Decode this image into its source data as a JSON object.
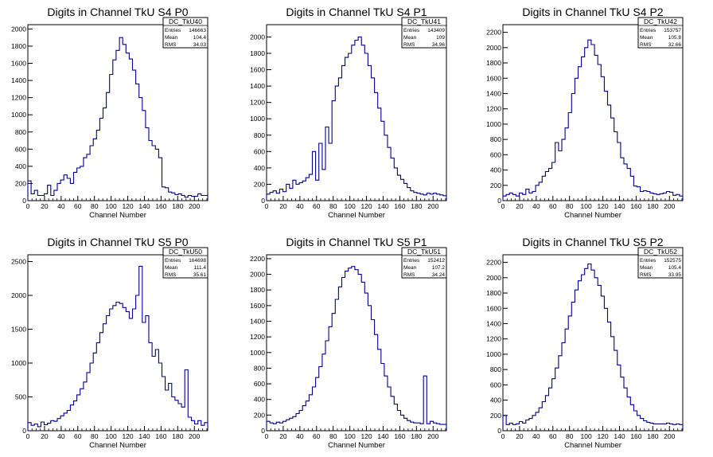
{
  "chart_data": [
    {
      "type": "histogram",
      "title": "Digits in Channel TkU S4 P0",
      "xlabel": "Channel Number",
      "xlim": [
        0,
        216
      ],
      "ylim": [
        0,
        2050
      ],
      "xticks": [
        0,
        20,
        40,
        60,
        80,
        100,
        120,
        140,
        160,
        180,
        200
      ],
      "yticks": [
        200,
        400,
        600,
        800,
        1000,
        1200,
        1400,
        1600,
        1800,
        2000
      ],
      "stats": {
        "name": "DC_TkU40",
        "entries": "146663",
        "mean": "104.4",
        "rms": "34.03"
      },
      "series": [
        {
          "x": [
            0,
            4,
            8,
            12,
            16,
            20,
            24,
            28,
            32,
            36,
            40,
            44,
            48,
            52,
            56,
            60,
            64,
            68,
            72,
            76,
            80,
            84,
            88,
            92,
            96,
            100,
            104,
            108,
            112,
            116,
            120,
            124,
            128,
            132,
            136,
            140,
            144,
            148,
            152,
            156,
            160,
            164,
            168,
            172,
            176,
            180,
            184,
            188,
            192,
            196,
            200,
            204,
            208,
            212,
            216
          ],
          "values": [
            230,
            80,
            120,
            60,
            60,
            80,
            180,
            60,
            120,
            200,
            240,
            300,
            260,
            200,
            330,
            380,
            400,
            500,
            540,
            640,
            720,
            820,
            960,
            1080,
            1260,
            1470,
            1640,
            1750,
            1900,
            1820,
            1720,
            1650,
            1520,
            1360,
            1200,
            1050,
            850,
            700,
            640,
            600,
            500,
            160,
            150,
            100,
            90,
            70,
            80,
            60,
            40,
            60,
            50,
            50,
            80,
            60,
            60
          ]
        }
      ]
    },
    {
      "type": "histogram",
      "title": "Digits in Channel TkU S4 P1",
      "xlabel": "Channel Number",
      "xlim": [
        0,
        216
      ],
      "ylim": [
        0,
        2150
      ],
      "xticks": [
        0,
        20,
        40,
        60,
        80,
        100,
        120,
        140,
        160,
        180,
        200
      ],
      "yticks": [
        200,
        400,
        600,
        800,
        1000,
        1200,
        1400,
        1600,
        1800,
        2000
      ],
      "stats": {
        "name": "DC_TkU41",
        "entries": "143409",
        "mean": "109",
        "rms": "34.96"
      },
      "series": [
        {
          "x": [
            0,
            4,
            8,
            12,
            16,
            20,
            24,
            28,
            32,
            36,
            40,
            44,
            48,
            52,
            56,
            60,
            64,
            68,
            72,
            76,
            80,
            84,
            88,
            92,
            96,
            100,
            104,
            108,
            112,
            116,
            120,
            124,
            128,
            132,
            136,
            140,
            144,
            148,
            152,
            156,
            160,
            164,
            168,
            172,
            176,
            180,
            184,
            188,
            192,
            196,
            200,
            204,
            208,
            212,
            216
          ],
          "values": [
            80,
            100,
            120,
            90,
            140,
            110,
            200,
            150,
            250,
            200,
            220,
            240,
            280,
            320,
            600,
            250,
            700,
            380,
            900,
            700,
            1220,
            1400,
            1500,
            1650,
            1750,
            1800,
            1900,
            1960,
            2000,
            1900,
            1800,
            1650,
            1500,
            1320,
            1130,
            970,
            800,
            650,
            520,
            400,
            310,
            260,
            210,
            160,
            120,
            100,
            90,
            80,
            70,
            90,
            80,
            90,
            80,
            70,
            60
          ]
        }
      ]
    },
    {
      "type": "histogram",
      "title": "Digits in Channel TkU S4 P2",
      "xlabel": "Channel Number",
      "xlim": [
        0,
        216
      ],
      "ylim": [
        0,
        2300
      ],
      "xticks": [
        0,
        20,
        40,
        60,
        80,
        100,
        120,
        140,
        160,
        180,
        200
      ],
      "yticks": [
        200,
        400,
        600,
        800,
        1000,
        1200,
        1400,
        1600,
        1800,
        2000,
        2200
      ],
      "stats": {
        "name": "DC_TkU42",
        "entries": "153757",
        "mean": "105.8",
        "rms": "32.66"
      },
      "series": [
        {
          "x": [
            0,
            4,
            8,
            12,
            16,
            20,
            24,
            28,
            32,
            36,
            40,
            44,
            48,
            52,
            56,
            60,
            64,
            68,
            72,
            76,
            80,
            84,
            88,
            92,
            96,
            100,
            104,
            108,
            112,
            116,
            120,
            124,
            128,
            132,
            136,
            140,
            144,
            148,
            152,
            156,
            160,
            164,
            168,
            172,
            176,
            180,
            184,
            188,
            192,
            196,
            200,
            204,
            208,
            212,
            216
          ],
          "values": [
            60,
            80,
            100,
            80,
            60,
            100,
            80,
            150,
            100,
            120,
            200,
            240,
            320,
            380,
            420,
            500,
            760,
            650,
            800,
            950,
            1150,
            1400,
            1600,
            1750,
            1880,
            2000,
            2100,
            2040,
            1900,
            1780,
            1620,
            1430,
            1250,
            1080,
            900,
            760,
            560,
            480,
            420,
            320,
            190,
            180,
            120,
            130,
            120,
            100,
            90,
            80,
            90,
            100,
            120,
            110,
            70,
            80,
            60
          ]
        }
      ]
    },
    {
      "type": "histogram",
      "title": "Digits in Channel TkU S5 P0",
      "xlabel": "Channel Number",
      "xlim": [
        0,
        216
      ],
      "ylim": [
        0,
        2600
      ],
      "xticks": [
        0,
        20,
        40,
        60,
        80,
        100,
        120,
        140,
        160,
        180,
        200
      ],
      "yticks": [
        500,
        1000,
        1500,
        2000,
        2500
      ],
      "stats": {
        "name": "DC_TkU50",
        "entries": "164698",
        "mean": "111.4",
        "rms": "35.61"
      },
      "series": [
        {
          "x": [
            0,
            4,
            8,
            12,
            16,
            20,
            24,
            28,
            32,
            36,
            40,
            44,
            48,
            52,
            56,
            60,
            64,
            68,
            72,
            76,
            80,
            84,
            88,
            92,
            96,
            100,
            104,
            108,
            112,
            116,
            120,
            124,
            128,
            132,
            136,
            140,
            144,
            148,
            152,
            156,
            160,
            164,
            168,
            172,
            176,
            180,
            184,
            188,
            192,
            196,
            200,
            204,
            208,
            212,
            216
          ],
          "values": [
            120,
            80,
            100,
            60,
            130,
            90,
            110,
            150,
            140,
            180,
            220,
            260,
            300,
            380,
            440,
            530,
            620,
            720,
            860,
            1000,
            1150,
            1300,
            1450,
            1580,
            1700,
            1800,
            1850,
            1900,
            1880,
            1820,
            1760,
            1660,
            1800,
            2000,
            2430,
            1600,
            1700,
            1300,
            1100,
            1200,
            1000,
            800,
            600,
            700,
            500,
            450,
            400,
            350,
            900,
            200,
            150,
            100,
            150,
            80,
            120
          ]
        }
      ]
    },
    {
      "type": "histogram",
      "title": "Digits in Channel TkU S5 P1",
      "xlabel": "Channel Number",
      "xlim": [
        0,
        216
      ],
      "ylim": [
        0,
        2250
      ],
      "xticks": [
        0,
        20,
        40,
        60,
        80,
        100,
        120,
        140,
        160,
        180,
        200
      ],
      "yticks": [
        200,
        400,
        600,
        800,
        1000,
        1200,
        1400,
        1600,
        1800,
        2000,
        2200
      ],
      "stats": {
        "name": "DC_TkU51",
        "entries": "152412",
        "mean": "107.2",
        "rms": "34.24"
      },
      "series": [
        {
          "x": [
            0,
            4,
            8,
            12,
            16,
            20,
            24,
            28,
            32,
            36,
            40,
            44,
            48,
            52,
            56,
            60,
            64,
            68,
            72,
            76,
            80,
            84,
            88,
            92,
            96,
            100,
            104,
            108,
            112,
            116,
            120,
            124,
            128,
            132,
            136,
            140,
            144,
            148,
            152,
            156,
            160,
            164,
            168,
            172,
            176,
            180,
            184,
            188,
            192,
            196,
            200,
            204,
            208,
            212,
            216
          ],
          "values": [
            120,
            100,
            90,
            110,
            100,
            120,
            140,
            160,
            180,
            220,
            260,
            320,
            380,
            460,
            560,
            680,
            820,
            980,
            1150,
            1330,
            1500,
            1680,
            1840,
            1960,
            2040,
            2080,
            2100,
            2060,
            2000,
            1900,
            1760,
            1600,
            1420,
            1230,
            1040,
            860,
            700,
            560,
            440,
            340,
            260,
            200,
            160,
            130,
            110,
            100,
            100,
            90,
            700,
            90,
            120,
            100,
            90,
            80,
            80
          ]
        }
      ]
    },
    {
      "type": "histogram",
      "title": "Digits in Channel TkU S5 P2",
      "xlabel": "Channel Number",
      "xlim": [
        0,
        216
      ],
      "ylim": [
        0,
        2300
      ],
      "xticks": [
        0,
        20,
        40,
        60,
        80,
        100,
        120,
        140,
        160,
        180,
        200
      ],
      "yticks": [
        200,
        400,
        600,
        800,
        1000,
        1200,
        1400,
        1600,
        1800,
        2000,
        2200
      ],
      "stats": {
        "name": "DC_TkU52",
        "entries": "152575",
        "mean": "105.4",
        "rms": "33.95"
      },
      "series": [
        {
          "x": [
            0,
            4,
            8,
            12,
            16,
            20,
            24,
            28,
            32,
            36,
            40,
            44,
            48,
            52,
            56,
            60,
            64,
            68,
            72,
            76,
            80,
            84,
            88,
            92,
            96,
            100,
            104,
            108,
            112,
            116,
            120,
            124,
            128,
            132,
            136,
            140,
            144,
            148,
            152,
            156,
            160,
            164,
            168,
            172,
            176,
            180,
            184,
            188,
            192,
            196,
            200,
            204,
            208,
            212,
            216
          ],
          "values": [
            200,
            80,
            100,
            80,
            90,
            120,
            100,
            140,
            160,
            200,
            240,
            300,
            380,
            460,
            560,
            680,
            820,
            980,
            1150,
            1330,
            1500,
            1680,
            1840,
            1960,
            2040,
            2120,
            2180,
            2100,
            2000,
            1900,
            1760,
            1600,
            1420,
            1230,
            1050,
            860,
            700,
            560,
            440,
            340,
            260,
            200,
            160,
            130,
            110,
            100,
            90,
            90,
            90,
            90,
            100,
            90,
            80,
            90,
            80
          ]
        }
      ]
    }
  ]
}
